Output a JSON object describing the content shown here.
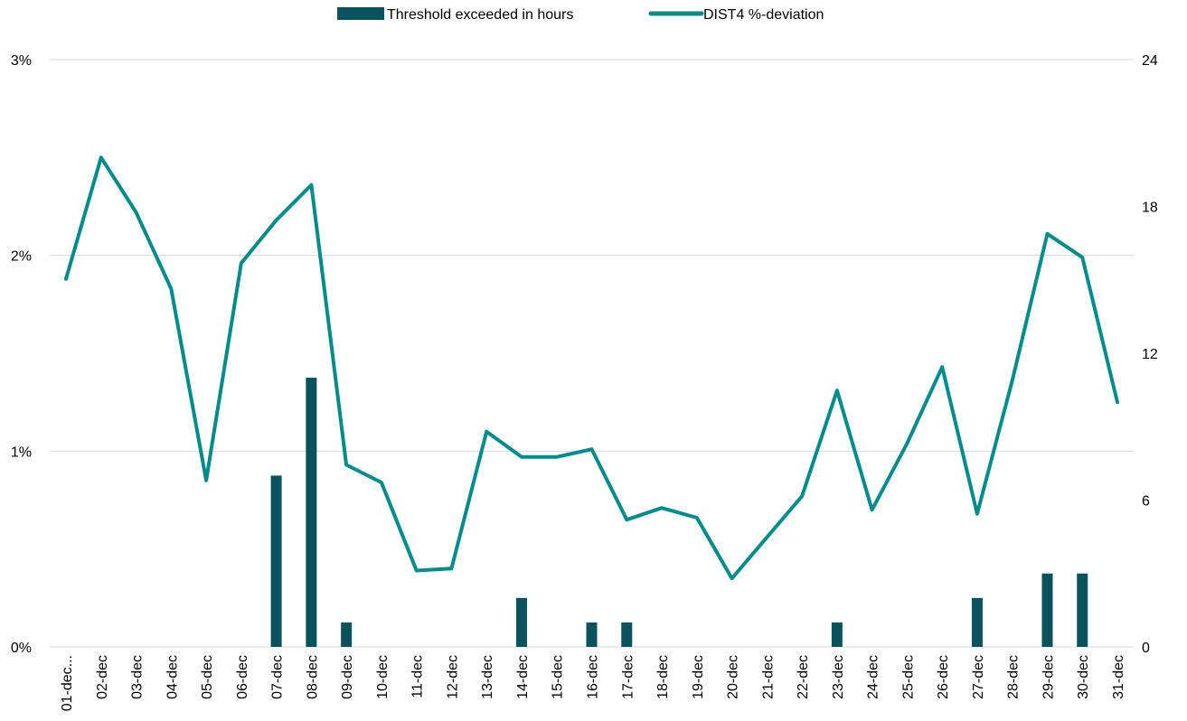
{
  "chart_data": {
    "type": "bar",
    "title": "",
    "xlabel": "",
    "ylabel": "",
    "categories": [
      "01-dec...",
      "02-dec",
      "03-dec",
      "04-dec",
      "05-dec",
      "06-dec",
      "07-dec",
      "08-dec",
      "09-dec",
      "10-dec",
      "11-dec",
      "12-dec",
      "13-dec",
      "14-dec",
      "15-dec",
      "16-dec",
      "17-dec",
      "18-dec",
      "19-dec",
      "20-dec",
      "21-dec",
      "22-dec",
      "23-dec",
      "24-dec",
      "25-dec",
      "26-dec",
      "27-dec",
      "28-dec",
      "29-dec",
      "30-dec",
      "31-dec"
    ],
    "series": [
      {
        "name": "Threshold exceeded in hours",
        "type": "bar",
        "axis": "right",
        "color": "#0a525e",
        "values": [
          0,
          0,
          0,
          0,
          0,
          0,
          7,
          11,
          1,
          0,
          0,
          0,
          0,
          2,
          0,
          1,
          1,
          0,
          0,
          0,
          0,
          0,
          1,
          0,
          0,
          0,
          2,
          0,
          3,
          3,
          0
        ]
      },
      {
        "name": "DIST4 %-deviation",
        "type": "line",
        "axis": "left",
        "color": "#008c8a",
        "values": [
          1.88,
          2.5,
          2.22,
          1.83,
          0.85,
          1.96,
          2.18,
          2.36,
          0.93,
          0.84,
          0.39,
          0.4,
          1.1,
          0.97,
          0.97,
          1.01,
          0.65,
          0.71,
          0.66,
          0.35,
          0.56,
          0.77,
          1.31,
          0.7,
          1.04,
          1.43,
          0.68,
          1.36,
          2.11,
          1.99,
          1.25
        ]
      }
    ],
    "y_left": {
      "ylim": [
        0,
        3
      ],
      "ticks": [
        0,
        1,
        2,
        3
      ],
      "tick_labels": [
        "0%",
        "1%",
        "2%",
        "3%"
      ]
    },
    "y_right": {
      "ylim": [
        0,
        24
      ],
      "ticks": [
        0,
        6,
        12,
        18,
        24
      ],
      "tick_labels": [
        "0",
        "6",
        "12",
        "18",
        "24"
      ]
    },
    "grid": true,
    "legend": {
      "position": "top-center",
      "entries": [
        "Threshold exceeded in hours",
        "DIST4 %-deviation"
      ]
    }
  }
}
